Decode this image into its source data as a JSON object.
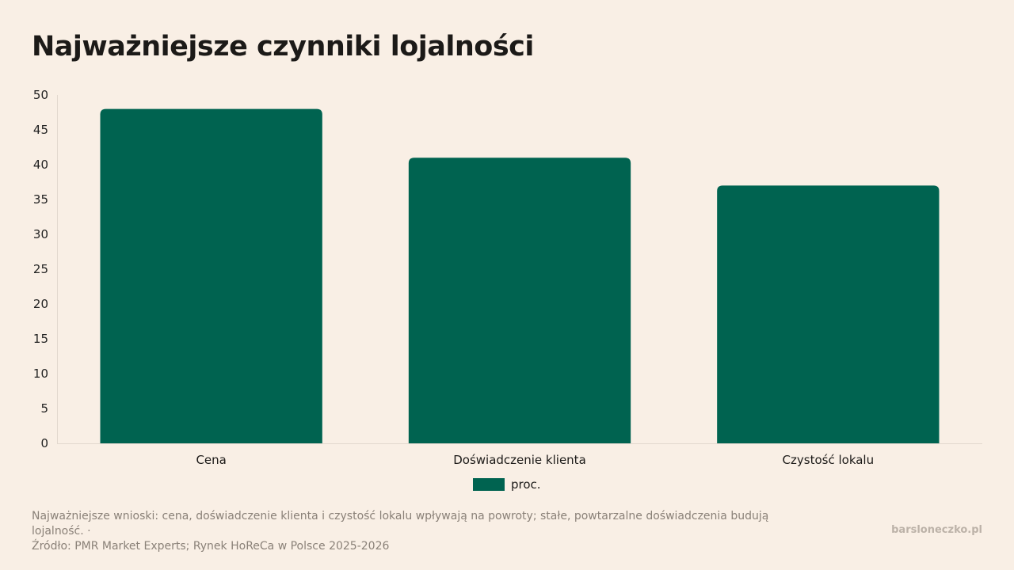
{
  "title": "Najważniejsze czynniki lojalności",
  "chart_data": {
    "type": "bar",
    "categories": [
      "Cena",
      "Doświadczenie klienta",
      "Czystość lokalu"
    ],
    "series": [
      {
        "name": "proc.",
        "values": [
          48,
          41,
          37
        ],
        "color": "#006350"
      }
    ],
    "title": "Najważniejsze czynniki lojalności",
    "xlabel": "",
    "ylabel": "",
    "ylim": [
      0,
      50
    ],
    "yticks": [
      0,
      5,
      10,
      15,
      20,
      25,
      30,
      35,
      40,
      45,
      50
    ],
    "grid": false,
    "legend": "bottom-center"
  },
  "footer": {
    "note": "Najważniejsze wnioski: cena, doświadczenie klienta i czystość lokalu wpływają na powroty; stałe, powtarzalne doświadczenia budują lojalność. ·",
    "source": "Źródło: PMR Market Experts; Rynek HoReCa w Polsce 2025-2026",
    "brand": "barsloneczko.pl"
  },
  "colors": {
    "background": "#f9efe5",
    "bar": "#006350",
    "axis": "#e2d8ce"
  }
}
